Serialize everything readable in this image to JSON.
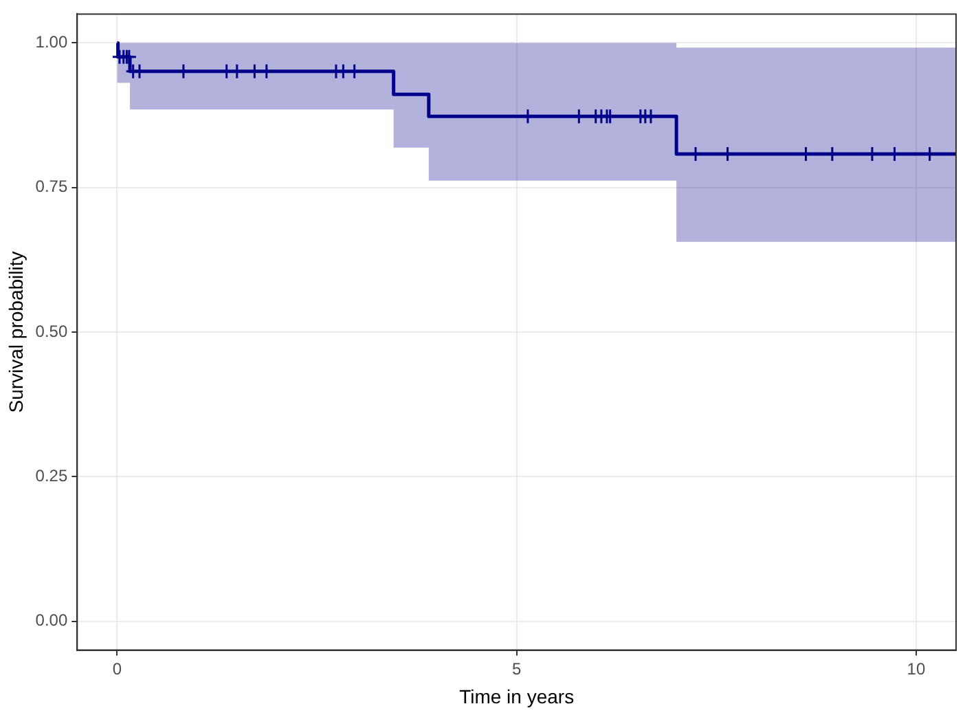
{
  "chart_data": {
    "type": "step",
    "xlabel": "Time in years",
    "ylabel": "Survival probability",
    "xlim": [
      -0.5,
      10.5
    ],
    "ylim": [
      -0.05,
      1.05
    ],
    "xticks": [
      0,
      5,
      10
    ],
    "yticks": [
      {
        "value": 0,
        "label": "0.00"
      },
      {
        "value": 0.25,
        "label": "0.25"
      },
      {
        "value": 0.5,
        "label": "0.50"
      },
      {
        "value": 0.75,
        "label": "0.75"
      },
      {
        "value": 1,
        "label": "1.00"
      }
    ],
    "grid": true,
    "legend": false,
    "series": [
      {
        "color": "#00008b",
        "marker": "none",
        "x": [
          0,
          0.01,
          0.16,
          3.46,
          3.9,
          7.0,
          10.5
        ],
        "values": [
          1,
          0.976,
          0.951,
          0.911,
          0.873,
          0.808,
          0.808
        ],
        "lower": [
          0.931,
          0.931,
          0.885,
          0.819,
          0.762,
          0.656,
          0.656
        ],
        "upper": [
          1,
          1,
          1,
          1,
          1,
          0.992,
          0.992
        ]
      },
      {
        "type": "scatter",
        "color": "#00008b",
        "marker": "cross",
        "x": [
          0.03,
          0.08,
          0.12,
          0.15,
          0.2,
          0.28,
          0.83,
          1.37,
          1.5,
          1.72,
          1.87,
          2.74,
          2.83,
          2.97,
          5.14,
          5.78,
          5.99,
          6.06,
          6.13,
          6.17,
          6.55,
          6.61,
          6.68,
          7.24,
          7.64,
          8.62,
          8.95,
          9.45,
          9.73,
          10.17
        ],
        "values": [
          0.976,
          0.976,
          0.976,
          0.976,
          0.951,
          0.951,
          0.951,
          0.951,
          0.951,
          0.951,
          0.951,
          0.951,
          0.951,
          0.951,
          0.873,
          0.873,
          0.873,
          0.873,
          0.873,
          0.873,
          0.873,
          0.873,
          0.873,
          0.808,
          0.808,
          0.808,
          0.808,
          0.808,
          0.808,
          0.808
        ]
      }
    ]
  }
}
